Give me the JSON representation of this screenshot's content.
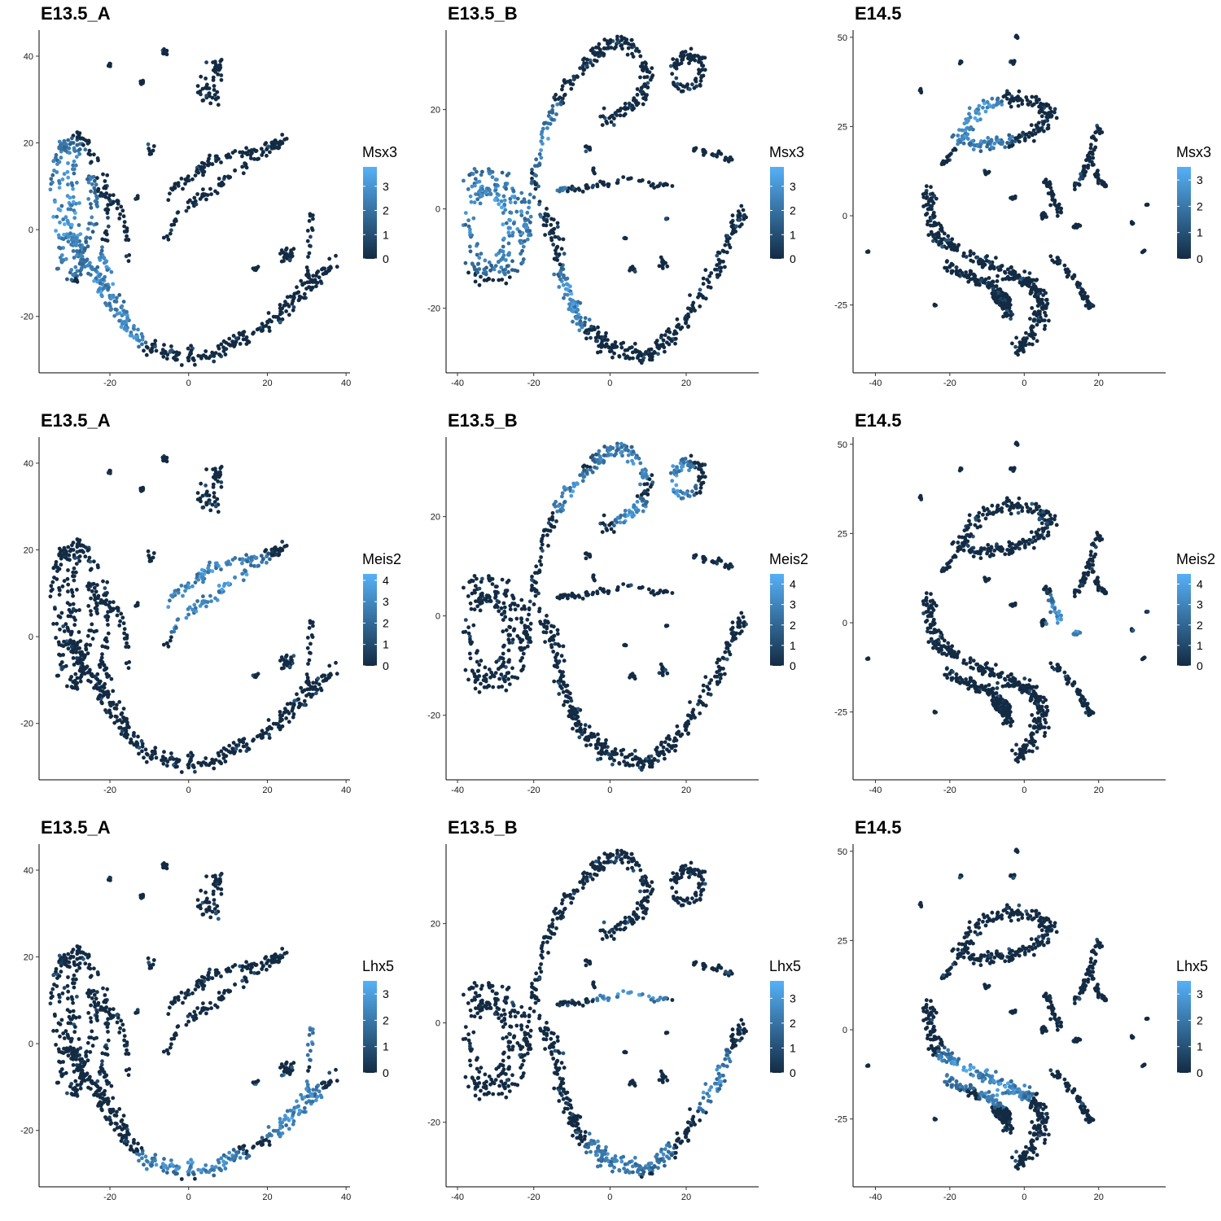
{
  "colors": {
    "low": "#132B43",
    "high": "#56B1F7",
    "axis": "#000000"
  },
  "chart_data": [
    {
      "type": "scatter",
      "title": "E13.5_A",
      "legend_title": "Msx3",
      "xticks": [
        -20,
        0,
        20,
        40
      ],
      "yticks": [
        -20,
        0,
        20,
        40
      ],
      "xlim": [
        -38,
        41
      ],
      "ylim": [
        -33,
        46
      ],
      "color_range": [
        0,
        3.8
      ],
      "legend_ticks": [
        0,
        1,
        2,
        3
      ],
      "shape": "A",
      "high_regions": [
        [
          -31,
          5,
          8,
          17
        ],
        [
          -22,
          -12,
          6,
          8
        ],
        [
          -15,
          -22,
          6,
          6
        ]
      ],
      "legend_placement": "right"
    },
    {
      "type": "scatter",
      "title": "E13.5_B",
      "legend_title": "Msx3",
      "xticks": [
        -40,
        -20,
        0,
        20
      ],
      "yticks": [
        -20,
        0,
        20
      ],
      "xlim": [
        -43,
        39
      ],
      "ylim": [
        -33,
        36
      ],
      "color_range": [
        0,
        3.8
      ],
      "legend_ticks": [
        0,
        1,
        2,
        3
      ],
      "shape": "B",
      "high_regions": [
        [
          -30,
          -2,
          12,
          12
        ],
        [
          -15,
          12,
          6,
          10
        ],
        [
          -10,
          -18,
          6,
          8
        ]
      ],
      "legend_placement": "right"
    },
    {
      "type": "scatter",
      "title": "E14.5",
      "legend_title": "Msx3",
      "xticks": [
        -40,
        -20,
        0,
        20
      ],
      "yticks": [
        -25,
        0,
        25,
        50
      ],
      "xlim": [
        -46,
        38
      ],
      "ylim": [
        -44,
        52
      ],
      "color_range": [
        0,
        3.5
      ],
      "legend_ticks": [
        0,
        1,
        2,
        3
      ],
      "shape": "C",
      "high_regions": [
        [
          -12,
          25,
          10,
          8
        ],
        [
          -10,
          30,
          6,
          4
        ]
      ],
      "legend_placement": "right"
    },
    {
      "type": "scatter",
      "title": "E13.5_A",
      "legend_title": "Meis2",
      "xticks": [
        -20,
        0,
        20,
        40
      ],
      "yticks": [
        -20,
        0,
        20,
        40
      ],
      "xlim": [
        -38,
        41
      ],
      "ylim": [
        -33,
        46
      ],
      "color_range": [
        0,
        4.3
      ],
      "legend_ticks": [
        0,
        1,
        2,
        3,
        4
      ],
      "shape": "A",
      "high_regions": [
        [
          10,
          13,
          16,
          8
        ],
        [
          -2,
          6,
          10,
          6
        ]
      ],
      "legend_placement": "right"
    },
    {
      "type": "scatter",
      "title": "E13.5_B",
      "legend_title": "Meis2",
      "xticks": [
        -40,
        -20,
        0,
        20
      ],
      "yticks": [
        -20,
        0,
        20
      ],
      "xlim": [
        -43,
        39
      ],
      "ylim": [
        -33,
        36
      ],
      "color_range": [
        0,
        4.5
      ],
      "legend_ticks": [
        0,
        1,
        2,
        3,
        4
      ],
      "shape": "B",
      "high_regions": [
        [
          17,
          27,
          6,
          6
        ],
        [
          3,
          30,
          8,
          5
        ],
        [
          -8,
          24,
          8,
          6
        ],
        [
          6,
          20,
          6,
          4
        ]
      ],
      "legend_placement": "right"
    },
    {
      "type": "scatter",
      "title": "E14.5",
      "legend_title": "Meis2",
      "xticks": [
        -40,
        -20,
        0,
        20
      ],
      "yticks": [
        -25,
        0,
        25,
        50
      ],
      "xlim": [
        -46,
        38
      ],
      "ylim": [
        -44,
        52
      ],
      "color_range": [
        0,
        4.5
      ],
      "legend_ticks": [
        0,
        1,
        2,
        3,
        4
      ],
      "shape": "C",
      "high_regions": [
        [
          9,
          3,
          4,
          6
        ],
        [
          13,
          -2,
          4,
          3
        ]
      ],
      "legend_placement": "right"
    },
    {
      "type": "scatter",
      "title": "E13.5_A",
      "legend_title": "Lhx5",
      "xticks": [
        -20,
        0,
        20,
        40
      ],
      "yticks": [
        -20,
        0,
        20,
        40
      ],
      "xlim": [
        -38,
        41
      ],
      "ylim": [
        -33,
        46
      ],
      "color_range": [
        0,
        3.5
      ],
      "legend_ticks": [
        0,
        1,
        2,
        3
      ],
      "shape": "A",
      "high_regions": [
        [
          0,
          -27,
          16,
          4
        ],
        [
          25,
          -15,
          12,
          8
        ],
        [
          30,
          0,
          3,
          5
        ]
      ],
      "legend_placement": "right"
    },
    {
      "type": "scatter",
      "title": "E13.5_B",
      "legend_title": "Lhx5",
      "xticks": [
        -40,
        -20,
        0,
        20
      ],
      "yticks": [
        -20,
        0,
        20
      ],
      "xlim": [
        -43,
        39
      ],
      "ylim": [
        -33,
        36
      ],
      "color_range": [
        0,
        3.7
      ],
      "legend_ticks": [
        0,
        1,
        2,
        3
      ],
      "shape": "B",
      "high_regions": [
        [
          5,
          -25,
          12,
          6
        ],
        [
          25,
          -10,
          8,
          8
        ],
        [
          5,
          5,
          10,
          2
        ]
      ],
      "legend_placement": "right"
    },
    {
      "type": "scatter",
      "title": "E14.5",
      "legend_title": "Lhx5",
      "xticks": [
        -40,
        -20,
        0,
        20
      ],
      "yticks": [
        -25,
        0,
        25,
        50
      ],
      "xlim": [
        -46,
        38
      ],
      "ylim": [
        -44,
        52
      ],
      "color_range": [
        0,
        3.5
      ],
      "legend_ticks": [
        0,
        1,
        2,
        3
      ],
      "shape": "C",
      "high_regions": [
        [
          -15,
          -10,
          10,
          7
        ],
        [
          -5,
          -17,
          8,
          5
        ]
      ],
      "legend_placement": "right"
    }
  ]
}
